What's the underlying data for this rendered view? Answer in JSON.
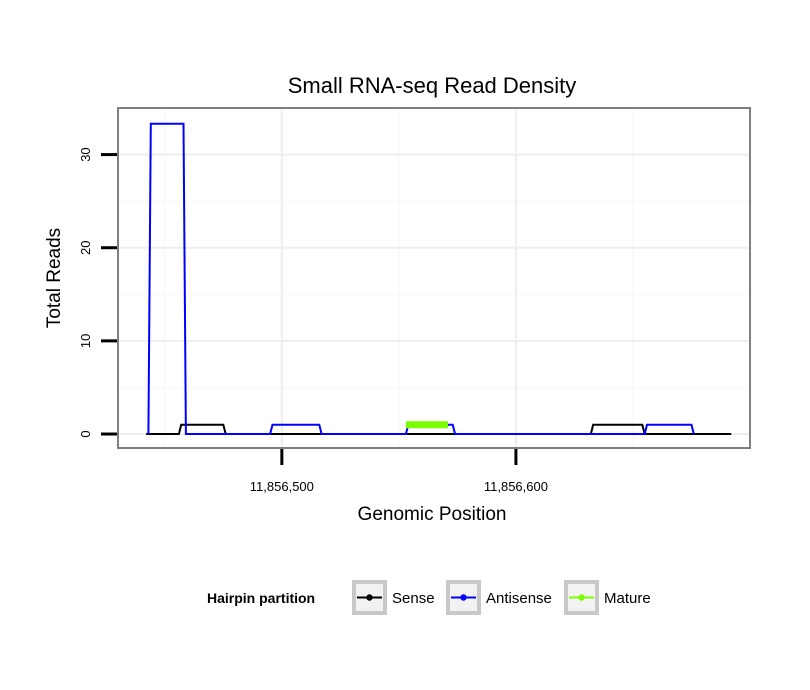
{
  "chart_data": {
    "type": "line",
    "title": "Small RNA-seq Read Density",
    "xlabel": "Genomic Position",
    "ylabel": "Total Reads",
    "xlim": [
      11856430,
      11856700
    ],
    "ylim": [
      -1.5,
      35
    ],
    "x_ticks": [
      11856500,
      11856600
    ],
    "x_tick_labels": [
      "11,856,500",
      "11,856,600"
    ],
    "y_ticks": [
      0,
      10,
      20,
      30
    ],
    "y_tick_labels": [
      "0",
      "10",
      "20",
      "30"
    ],
    "grid": true,
    "legend": {
      "title": "Hairpin partition",
      "position": "bottom",
      "entries": [
        {
          "name": "Sense",
          "color": "#000000"
        },
        {
          "name": "Antisense",
          "color": "#0000ff"
        },
        {
          "name": "Mature",
          "color": "#7cfc00"
        }
      ]
    },
    "series": [
      {
        "name": "Sense",
        "color": "#000000",
        "x": [
          11856442,
          11856456,
          11856457,
          11856475,
          11856476,
          11856632,
          11856633,
          11856654,
          11856655,
          11856692
        ],
        "y": [
          0,
          0,
          1,
          1,
          0,
          0,
          1,
          1,
          0,
          0
        ]
      },
      {
        "name": "Antisense",
        "color": "#0000ff",
        "x": [
          11856443,
          11856444,
          11856458,
          11856459,
          11856495,
          11856496,
          11856516,
          11856517,
          11856553,
          11856554,
          11856573,
          11856574,
          11856655,
          11856656,
          11856675,
          11856676
        ],
        "y": [
          0,
          33.3,
          33.3,
          0,
          0,
          1,
          1,
          0,
          0,
          1,
          1,
          0,
          0,
          1,
          1,
          0
        ]
      },
      {
        "name": "Mature",
        "color": "#7cfc00",
        "x": [
          11856553,
          11856571
        ],
        "y": [
          1,
          1
        ]
      }
    ]
  }
}
